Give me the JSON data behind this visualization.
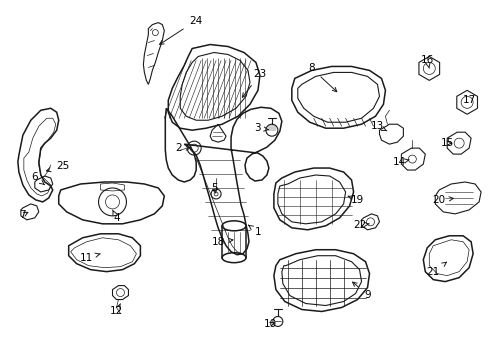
{
  "background_color": "#ffffff",
  "line_color": "#1a1a1a",
  "text_color": "#000000",
  "fig_width": 4.89,
  "fig_height": 3.6,
  "dpi": 100,
  "font_size_label": 7.5
}
